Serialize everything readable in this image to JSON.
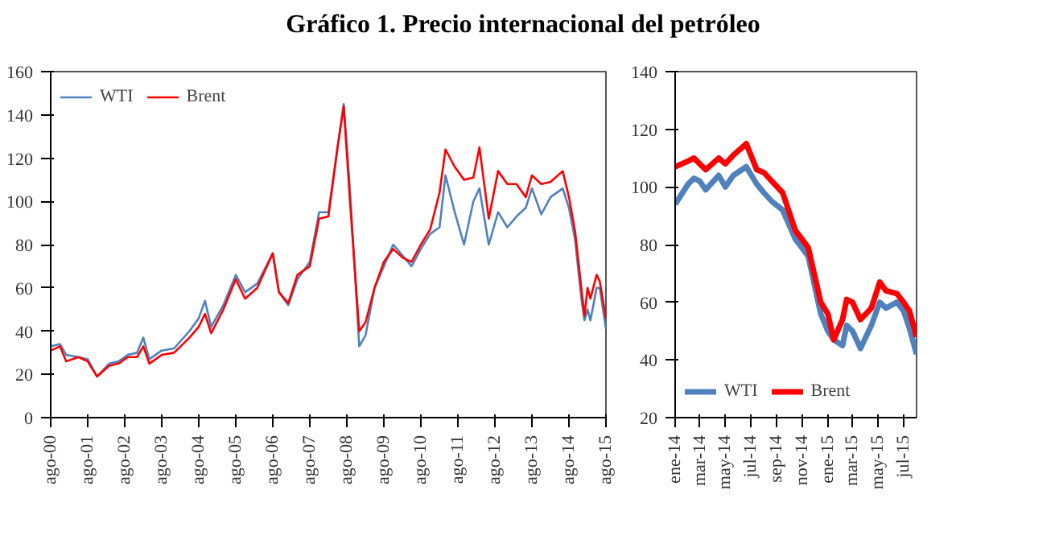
{
  "chart_data": [
    {
      "type": "line",
      "title": "Gráfico 1. Precio internacional del petróleo",
      "x": [
        "2000-08",
        "2000-11",
        "2001-01",
        "2001-05",
        "2001-08",
        "2001-11",
        "2002-03",
        "2002-06",
        "2002-09",
        "2002-12",
        "2003-02",
        "2003-04",
        "2003-08",
        "2003-12",
        "2004-05",
        "2004-08",
        "2004-10",
        "2004-12",
        "2005-04",
        "2005-08",
        "2005-11",
        "2006-03",
        "2006-08",
        "2006-10",
        "2007-01",
        "2007-04",
        "2007-08",
        "2007-11",
        "2008-02",
        "2008-05",
        "2008-07",
        "2008-09",
        "2008-12",
        "2009-02",
        "2009-05",
        "2009-08",
        "2009-11",
        "2010-02",
        "2010-05",
        "2010-08",
        "2010-11",
        "2011-02",
        "2011-04",
        "2011-07",
        "2011-10",
        "2012-01",
        "2012-03",
        "2012-06",
        "2012-09",
        "2012-12",
        "2013-03",
        "2013-06",
        "2013-08",
        "2013-11",
        "2014-02",
        "2014-06",
        "2014-08",
        "2014-10",
        "2014-12",
        "2015-01",
        "2015-02",
        "2015-03",
        "2015-05",
        "2015-06",
        "2015-08"
      ],
      "series": [
        {
          "name": "WTI",
          "color": "#4f81bd",
          "values": [
            33,
            34,
            29,
            28,
            27,
            19,
            25,
            26,
            29,
            30,
            37,
            27,
            31,
            32,
            40,
            46,
            54,
            42,
            52,
            66,
            58,
            62,
            76,
            58,
            52,
            64,
            72,
            95,
            95,
            125,
            145,
            105,
            33,
            38,
            60,
            70,
            80,
            75,
            70,
            78,
            85,
            88,
            112,
            95,
            80,
            100,
            106,
            80,
            95,
            88,
            93,
            97,
            106,
            94,
            102,
            106,
            97,
            82,
            55,
            45,
            50,
            45,
            60,
            60,
            41
          ]
        },
        {
          "name": "Brent",
          "color": "#ff0000",
          "values": [
            31,
            33,
            26,
            28,
            26,
            19,
            24,
            25,
            28,
            28,
            33,
            25,
            29,
            30,
            37,
            42,
            48,
            39,
            50,
            64,
            55,
            60,
            76,
            58,
            53,
            66,
            70,
            92,
            93,
            125,
            144,
            100,
            40,
            44,
            60,
            72,
            78,
            74,
            72,
            80,
            87,
            104,
            124,
            116,
            110,
            111,
            125,
            92,
            114,
            108,
            108,
            102,
            112,
            108,
            109,
            114,
            102,
            86,
            60,
            47,
            60,
            55,
            66,
            63,
            46
          ]
        }
      ],
      "xlim": [
        "2000-08",
        "2015-08"
      ],
      "xticks": [
        {
          "value": "2000-08",
          "label": "ago-00"
        },
        {
          "value": "2001-08",
          "label": "ago-01"
        },
        {
          "value": "2002-08",
          "label": "ago-02"
        },
        {
          "value": "2003-08",
          "label": "ago-03"
        },
        {
          "value": "2004-08",
          "label": "ago-04"
        },
        {
          "value": "2005-08",
          "label": "ago-05"
        },
        {
          "value": "2006-08",
          "label": "ago-06"
        },
        {
          "value": "2007-08",
          "label": "ago-07"
        },
        {
          "value": "2008-08",
          "label": "ago-08"
        },
        {
          "value": "2009-08",
          "label": "ago-09"
        },
        {
          "value": "2010-08",
          "label": "ago-10"
        },
        {
          "value": "2011-08",
          "label": "ago-11"
        },
        {
          "value": "2012-08",
          "label": "ago-12"
        },
        {
          "value": "2013-08",
          "label": "ago-13"
        },
        {
          "value": "2014-08",
          "label": "ago-14"
        },
        {
          "value": "2015-08",
          "label": "ago-15"
        }
      ],
      "ylim": [
        0,
        160
      ],
      "yticks": [
        0,
        20,
        40,
        60,
        80,
        100,
        120,
        140,
        160
      ],
      "grid": false,
      "legend": "top left"
    },
    {
      "type": "line",
      "x": [
        "2014-01-01",
        "2014-02-01",
        "2014-02-15",
        "2014-03-01",
        "2014-03-15",
        "2014-04-15",
        "2014-05-01",
        "2014-05-20",
        "2014-06-20",
        "2014-07-15",
        "2014-08-01",
        "2014-08-20",
        "2014-09-15",
        "2014-10-15",
        "2014-11-15",
        "2014-12-15",
        "2015-01-01",
        "2015-01-15",
        "2015-02-05",
        "2015-02-15",
        "2015-03-01",
        "2015-03-20",
        "2015-04-15",
        "2015-05-05",
        "2015-05-20",
        "2015-06-15",
        "2015-07-01",
        "2015-07-15",
        "2015-08-01"
      ],
      "series": [
        {
          "name": "WTI",
          "color": "#4f81bd",
          "values": [
            94,
            101,
            103,
            102,
            99,
            104,
            100,
            104,
            107,
            101,
            98,
            95,
            92,
            82,
            76,
            56,
            50,
            47,
            45,
            52,
            50,
            44,
            52,
            60,
            58,
            60,
            57,
            51,
            42
          ]
        },
        {
          "name": "Brent",
          "color": "#ff0000",
          "values": [
            107,
            109,
            110,
            108,
            106,
            110,
            108,
            111,
            115,
            106,
            105,
            102,
            98,
            85,
            79,
            60,
            56,
            47,
            54,
            61,
            60,
            54,
            58,
            67,
            64,
            63,
            60,
            57,
            48
          ]
        }
      ],
      "xlim": [
        "2014-01-01",
        "2015-08-01"
      ],
      "xticks": [
        {
          "value": "2014-01-01",
          "label": "ene-14"
        },
        {
          "value": "2014-03-01",
          "label": "mar-14"
        },
        {
          "value": "2014-05-01",
          "label": "may-14"
        },
        {
          "value": "2014-07-01",
          "label": "jul-14"
        },
        {
          "value": "2014-09-01",
          "label": "sep-14"
        },
        {
          "value": "2014-11-01",
          "label": "nov-14"
        },
        {
          "value": "2015-01-01",
          "label": "ene-15"
        },
        {
          "value": "2015-03-01",
          "label": "mar-15"
        },
        {
          "value": "2015-05-01",
          "label": "may-15"
        },
        {
          "value": "2015-07-01",
          "label": "jul-15"
        }
      ],
      "ylim": [
        20,
        140
      ],
      "yticks": [
        20,
        40,
        60,
        80,
        100,
        120,
        140
      ],
      "grid": false,
      "legend": "bottom left"
    }
  ]
}
